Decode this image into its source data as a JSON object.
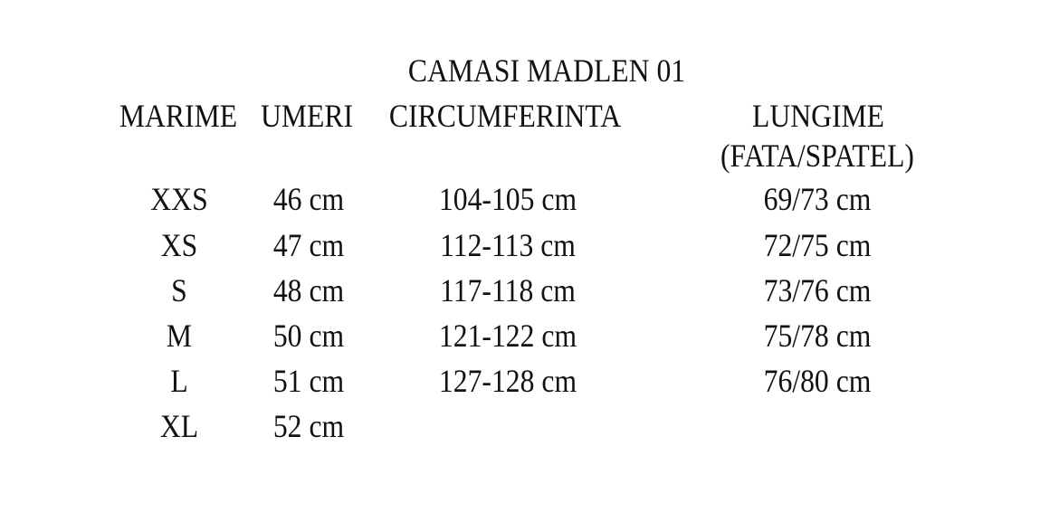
{
  "title": "CAMASI MADLEN 01",
  "headers": {
    "size": "MARIME",
    "shoulders": "UMERI",
    "circumference": "CIRCUMFERINTA",
    "length": "LUNGIME",
    "length_sub": "(FATA/SPATEL)"
  },
  "rows": [
    {
      "size": "XXS",
      "shoulders": "46 cm",
      "circumference": "104-105 cm",
      "length": "69/73 cm"
    },
    {
      "size": "XS",
      "shoulders": "47 cm",
      "circumference": "112-113 cm",
      "length": "72/75 cm"
    },
    {
      "size": "S",
      "shoulders": "48 cm",
      "circumference": "117-118 cm",
      "length": "73/76 cm"
    },
    {
      "size": "M",
      "shoulders": "50 cm",
      "circumference": "121-122 cm",
      "length": "75/78 cm"
    },
    {
      "size": "L",
      "shoulders": "51 cm",
      "circumference": "127-128 cm",
      "length": "76/80 cm"
    },
    {
      "size": "XL",
      "shoulders": "52 cm",
      "circumference": "",
      "length": ""
    }
  ]
}
